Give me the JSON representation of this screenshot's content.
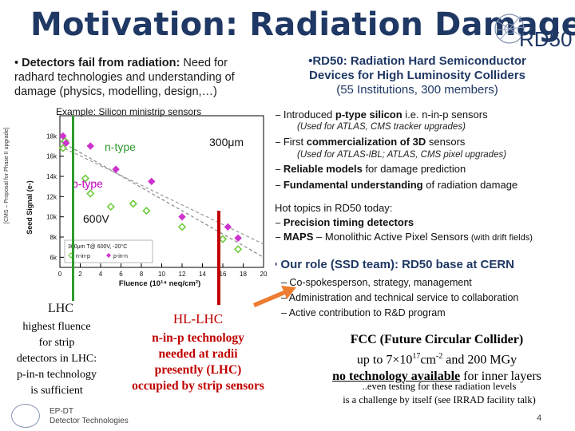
{
  "slide": {
    "title": "Motivation: Radiation Damage!",
    "page_number": "4",
    "logo_text": "RD50",
    "footer": {
      "line1": "EP-DT",
      "line2": "Detector Technologies"
    }
  },
  "left_bullet": {
    "prefix": "• ",
    "bold": "Detectors fail from radiation:",
    "text": " Need for radhard technologies and understanding of damage (physics, modelling, design,…)"
  },
  "rd50": {
    "heading_line1": "•RD50: Radiation Hard Semiconductor",
    "heading_line2": "Devices for High Luminosity Colliders",
    "heading_line3": "(55 Institutions, 300 members)",
    "items": [
      {
        "prefix": "– Introduced ",
        "bold": "p-type silicon",
        "text": " i.e. n-in-p sensors"
      },
      {
        "note": "(Used for ATLAS, CMS tracker upgrades)"
      },
      {
        "prefix": "– First ",
        "bold": "commercialization of 3D",
        "text": " sensors"
      },
      {
        "note": "(Used for ATLAS-IBL;  ATLAS, CMS pixel upgrades)"
      },
      {
        "prefix": "– ",
        "bold": "Reliable models",
        "text": " for damage prediction"
      },
      {
        "prefix": "– ",
        "bold": "Fundamental understanding",
        "text": " of radiation damage"
      }
    ]
  },
  "hot_topics": {
    "heading": "Hot topics in RD50 today:",
    "item1_prefix": "– ",
    "item1_bold": "Precision timing detectors",
    "item2_prefix": "– ",
    "item2_bold": "MAPS",
    "item2_text": " – Monolithic Active Pixel Sensors",
    "item2_note": " (with drift fields)"
  },
  "role": {
    "heading": "•   Our role (SSD team): RD50 base at CERN",
    "items": [
      "–   Co-spokesperson, strategy, management",
      "–   Administration and technical service to collaboration",
      "–   Active contribution to R&D program"
    ]
  },
  "lhc": {
    "title": "LHC",
    "lines": [
      "highest fluence",
      "for strip",
      "detectors in LHC:",
      "p-in-n technology",
      "is sufficient"
    ]
  },
  "hllhc": {
    "title": "HL-LHC",
    "lines": [
      "n-in-p technology",
      "needed at radii",
      "presently (LHC)",
      "occupied by strip sensors"
    ]
  },
  "fcc": {
    "line1": "FCC (Future Circular Collider)",
    "line2a": "up to 7×10",
    "line2sup1": "17",
    "line2b": "cm",
    "line2sup2": "-2",
    "line2c": " and 200 MGy",
    "line3u": "no technology available",
    "line3": " for inner layers",
    "note1": "..even testing for these radiation levels",
    "note2": "is a challenge by itself (see IRRAD facility talk)"
  },
  "chart_data": {
    "type": "scatter",
    "title": "Example: Silicon ministrip sensors",
    "xlabel": "Fluence (10¹⁴ neq/cm²)",
    "ylabel": "Seed Signal (e-)",
    "side_label": "[CMS – Proposal for Phase II upgrade]",
    "xlim": [
      0,
      20
    ],
    "ylim": [
      5000,
      20000
    ],
    "x_ticks": [
      "0",
      "2",
      "4",
      "6",
      "8",
      "10",
      "12",
      "14",
      "16",
      "18",
      "20"
    ],
    "y_ticks": [
      "6k",
      "8k",
      "10k",
      "12k",
      "14k",
      "16k",
      "18k"
    ],
    "annotations": {
      "ntype": "n-type",
      "ptype": "p-type",
      "thickness": "300μm",
      "voltage": "600V"
    },
    "legend": [
      "300μm T@ 600V, -20°C",
      "n-in-p",
      "p-in-n"
    ],
    "series": [
      {
        "name": "n-in-p",
        "color": "#66cc33",
        "x": [
          0.3,
          0.5,
          2.5,
          3.0,
          5.0,
          7.2,
          8.5,
          12.0,
          16.0,
          17.5
        ],
        "y": [
          16800,
          17500,
          13800,
          12300,
          11000,
          11300,
          10600,
          9000,
          7800,
          6800
        ]
      },
      {
        "name": "p-in-n",
        "color": "#cc33cc",
        "x": [
          0.3,
          0.6,
          3.0,
          5.5,
          9.0,
          12.0,
          16.5,
          17.5
        ],
        "y": [
          18000,
          17300,
          17000,
          14700,
          13500,
          10000,
          9000,
          7900
        ]
      }
    ],
    "fit_lines": [
      {
        "x": [
          0,
          20
        ],
        "y": [
          17500,
          6000
        ],
        "color": "#888888"
      },
      {
        "x": [
          0,
          20
        ],
        "y": [
          17000,
          7300
        ],
        "color": "#999999"
      }
    ]
  },
  "colors": {
    "title": "#1f3864",
    "accent_green": "#2e9b2e",
    "accent_red": "#c00000",
    "arrow_orange": "#ed7d31"
  }
}
